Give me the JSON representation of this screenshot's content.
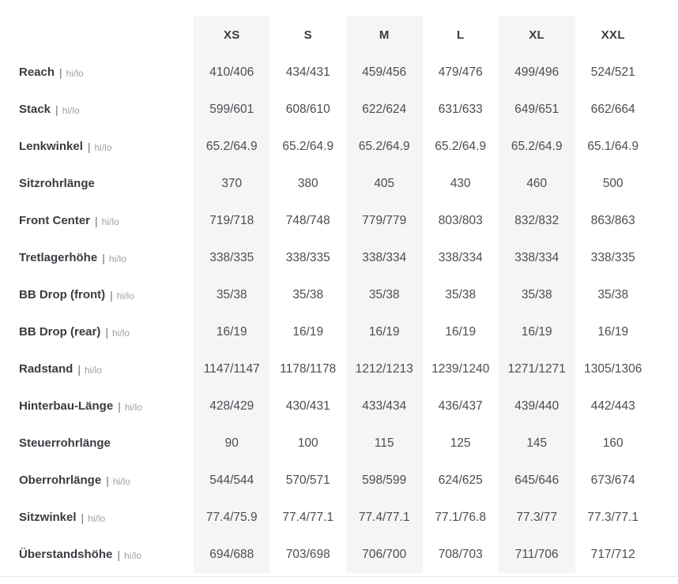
{
  "colors": {
    "stripe_background": "#f5f5f5",
    "label_text": "#3b3b42",
    "value_text": "#4c4c54",
    "sublabel_text": "#9ca0a6",
    "bottom_rule": "#e7e7e7"
  },
  "table": {
    "separator": "|",
    "sublabel": "hi/lo",
    "columns": [
      "XS",
      "S",
      "M",
      "L",
      "XL",
      "XXL"
    ],
    "striped_column_indexes": [
      0,
      2,
      4
    ],
    "rows": [
      {
        "label": "Reach",
        "sub": true,
        "values": [
          "410/406",
          "434/431",
          "459/456",
          "479/476",
          "499/496",
          "524/521"
        ]
      },
      {
        "label": "Stack",
        "sub": true,
        "values": [
          "599/601",
          "608/610",
          "622/624",
          "631/633",
          "649/651",
          "662/664"
        ]
      },
      {
        "label": "Lenkwinkel",
        "sub": true,
        "values": [
          "65.2/64.9",
          "65.2/64.9",
          "65.2/64.9",
          "65.2/64.9",
          "65.2/64.9",
          "65.1/64.9"
        ]
      },
      {
        "label": "Sitzrohrlänge",
        "sub": false,
        "values": [
          "370",
          "380",
          "405",
          "430",
          "460",
          "500"
        ]
      },
      {
        "label": "Front Center",
        "sub": true,
        "values": [
          "719/718",
          "748/748",
          "779/779",
          "803/803",
          "832/832",
          "863/863"
        ]
      },
      {
        "label": "Tretlagerhöhe",
        "sub": true,
        "values": [
          "338/335",
          "338/335",
          "338/334",
          "338/334",
          "338/334",
          "338/335"
        ]
      },
      {
        "label": "BB Drop (front)",
        "sub": true,
        "values": [
          "35/38",
          "35/38",
          "35/38",
          "35/38",
          "35/38",
          "35/38"
        ]
      },
      {
        "label": "BB Drop (rear)",
        "sub": true,
        "values": [
          "16/19",
          "16/19",
          "16/19",
          "16/19",
          "16/19",
          "16/19"
        ]
      },
      {
        "label": "Radstand",
        "sub": true,
        "values": [
          "1147/1147",
          "1178/1178",
          "1212/1213",
          "1239/1240",
          "1271/1271",
          "1305/1306"
        ]
      },
      {
        "label": "Hinterbau-Länge",
        "sub": true,
        "values": [
          "428/429",
          "430/431",
          "433/434",
          "436/437",
          "439/440",
          "442/443"
        ]
      },
      {
        "label": "Steuerrohrlänge",
        "sub": false,
        "values": [
          "90",
          "100",
          "115",
          "125",
          "145",
          "160"
        ]
      },
      {
        "label": "Oberrohrlänge",
        "sub": true,
        "values": [
          "544/544",
          "570/571",
          "598/599",
          "624/625",
          "645/646",
          "673/674"
        ]
      },
      {
        "label": "Sitzwinkel",
        "sub": true,
        "values": [
          "77.4/75.9",
          "77.4/77.1",
          "77.4/77.1",
          "77.1/76.8",
          "77.3/77",
          "77.3/77.1"
        ]
      },
      {
        "label": "Überstandshöhe",
        "sub": true,
        "values": [
          "694/688",
          "703/698",
          "706/700",
          "708/703",
          "711/706",
          "717/712"
        ]
      }
    ]
  }
}
